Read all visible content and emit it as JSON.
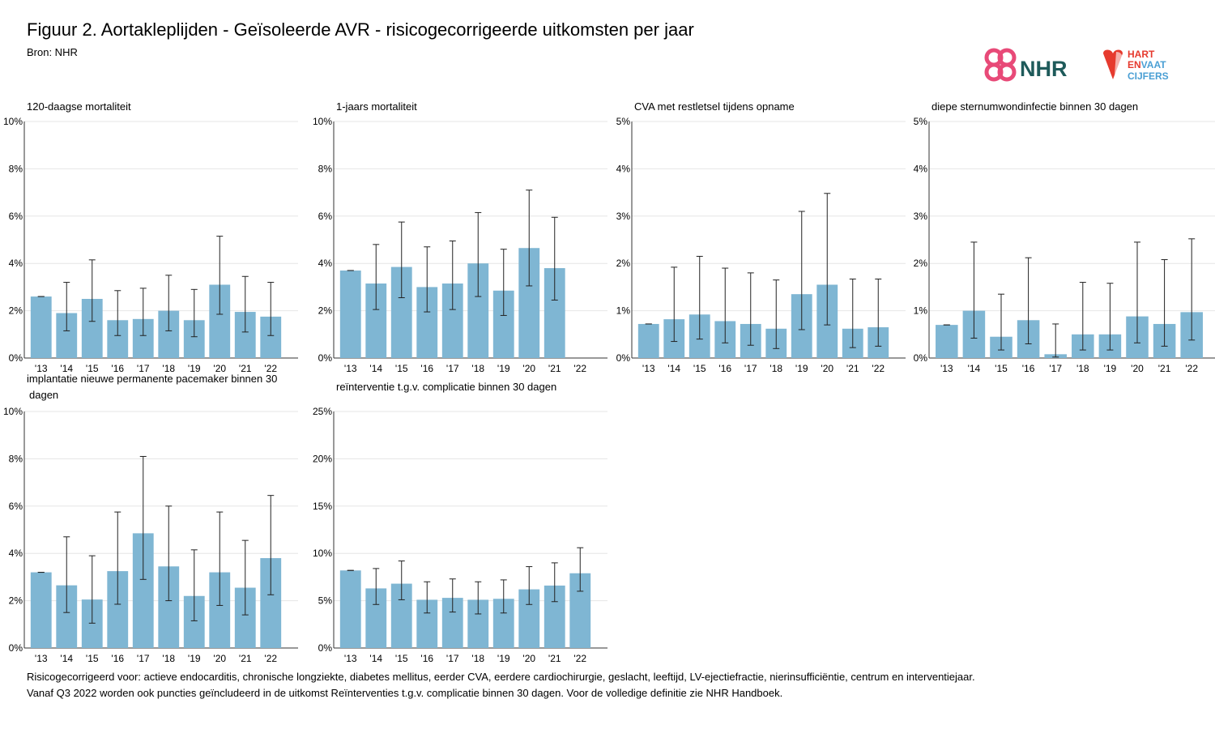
{
  "header": {
    "title": "Figuur 2. Aortakleplijden - Geïsoleerde AVR - risicogecorrigeerde uitkomsten per jaar",
    "source": "Bron: NHR"
  },
  "logos": {
    "nhr_text": "NHR",
    "hartvaat_line1": "HART",
    "hartvaat_line2_a": "EN",
    "hartvaat_line2_b": "VAAT",
    "hartvaat_line3": "CIJFERS"
  },
  "colors": {
    "bar": "#7fb6d3",
    "errorbar": "#222222",
    "grid": "#e6e6e6",
    "nhr_pink": "#e84a78",
    "nhr_teal": "#1e5a5a",
    "hv_red": "#e63a2e",
    "hv_blue": "#4a9fd4"
  },
  "footnotes": [
    "Risicogecorrigeerd voor: actieve endocarditis, chronische longziekte, diabetes mellitus, eerder CVA, eerdere cardiochirurgie, geslacht, leeftijd, LV-ejectiefractie, nierinsufficiëntie, centrum en interventiejaar.",
    "Vanaf Q3 2022 worden ook puncties geïncludeerd in de uitkomst Reïnterventies t.g.v. complicatie binnen 30 dagen. Voor de volledige definitie zie NHR Handboek."
  ],
  "chart_data": [
    {
      "type": "bar",
      "title": "120-daagse mortaliteit",
      "categories": [
        "'13",
        "'14",
        "'15",
        "'16",
        "'17",
        "'18",
        "'19",
        "'20",
        "'21",
        "'22"
      ],
      "values": [
        2.6,
        1.9,
        2.5,
        1.6,
        1.65,
        2.0,
        1.6,
        3.1,
        1.95,
        1.75
      ],
      "lower": [
        2.6,
        1.15,
        1.55,
        0.95,
        0.95,
        1.15,
        0.9,
        1.85,
        1.1,
        0.95
      ],
      "upper": [
        2.6,
        3.2,
        4.15,
        2.85,
        2.95,
        3.5,
        2.9,
        5.15,
        3.45,
        3.2
      ],
      "ylim": [
        0,
        10
      ],
      "yticks": [
        "0%",
        "2%",
        "4%",
        "6%",
        "8%",
        "10%"
      ],
      "ytick_values": [
        0,
        2,
        4,
        6,
        8,
        10
      ]
    },
    {
      "type": "bar",
      "title": "1-jaars mortaliteit",
      "categories": [
        "'13",
        "'14",
        "'15",
        "'16",
        "'17",
        "'18",
        "'19",
        "'20",
        "'21",
        "'22"
      ],
      "values": [
        3.7,
        3.15,
        3.85,
        3.0,
        3.15,
        4.0,
        2.85,
        4.65,
        3.8,
        null
      ],
      "lower": [
        3.7,
        2.05,
        2.55,
        1.95,
        2.05,
        2.6,
        1.8,
        3.05,
        2.45,
        null
      ],
      "upper": [
        3.7,
        4.8,
        5.75,
        4.7,
        4.95,
        6.15,
        4.6,
        7.1,
        5.95,
        null
      ],
      "ylim": [
        0,
        10
      ],
      "yticks": [
        "0%",
        "2%",
        "4%",
        "6%",
        "8%",
        "10%"
      ],
      "ytick_values": [
        0,
        2,
        4,
        6,
        8,
        10
      ]
    },
    {
      "type": "bar",
      "title": "CVA met restletsel tijdens opname",
      "categories": [
        "'13",
        "'14",
        "'15",
        "'16",
        "'17",
        "'18",
        "'19",
        "'20",
        "'21",
        "'22"
      ],
      "values": [
        0.72,
        0.82,
        0.92,
        0.78,
        0.72,
        0.62,
        1.35,
        1.55,
        0.62,
        0.65
      ],
      "lower": [
        0.72,
        0.35,
        0.4,
        0.32,
        0.27,
        0.2,
        0.6,
        0.7,
        0.22,
        0.25
      ],
      "upper": [
        0.72,
        1.92,
        2.15,
        1.9,
        1.8,
        1.65,
        3.1,
        3.48,
        1.67,
        1.67
      ],
      "ylim": [
        0,
        5
      ],
      "yticks": [
        "0%",
        "1%",
        "2%",
        "3%",
        "4%",
        "5%"
      ],
      "ytick_values": [
        0,
        1,
        2,
        3,
        4,
        5
      ]
    },
    {
      "type": "bar",
      "title": "diepe sternumwondinfectie binnen 30 dagen",
      "categories": [
        "'13",
        "'14",
        "'15",
        "'16",
        "'17",
        "'18",
        "'19",
        "'20",
        "'21",
        "'22"
      ],
      "values": [
        0.7,
        1.0,
        0.45,
        0.8,
        0.08,
        0.5,
        0.5,
        0.88,
        0.72,
        0.97
      ],
      "lower": [
        0.7,
        0.42,
        0.17,
        0.3,
        0.02,
        0.17,
        0.17,
        0.32,
        0.25,
        0.38
      ],
      "upper": [
        0.7,
        2.45,
        1.35,
        2.12,
        0.72,
        1.6,
        1.58,
        2.45,
        2.08,
        2.52
      ],
      "ylim": [
        0,
        5
      ],
      "yticks": [
        "0%",
        "1%",
        "2%",
        "3%",
        "4%",
        "5%"
      ],
      "ytick_values": [
        0,
        1,
        2,
        3,
        4,
        5
      ]
    },
    {
      "type": "bar",
      "title_line1": "implantatie nieuwe permanente pacemaker binnen 30",
      "title_line2": "dagen",
      "categories": [
        "'13",
        "'14",
        "'15",
        "'16",
        "'17",
        "'18",
        "'19",
        "'20",
        "'21",
        "'22"
      ],
      "values": [
        3.2,
        2.65,
        2.05,
        3.25,
        4.85,
        3.45,
        2.2,
        3.2,
        2.55,
        3.8
      ],
      "lower": [
        3.2,
        1.5,
        1.05,
        1.85,
        2.9,
        2.0,
        1.15,
        1.8,
        1.4,
        2.25
      ],
      "upper": [
        3.2,
        4.7,
        3.9,
        5.75,
        8.1,
        6.0,
        4.15,
        5.75,
        4.55,
        6.45
      ],
      "ylim": [
        0,
        10
      ],
      "yticks": [
        "0%",
        "2%",
        "4%",
        "6%",
        "8%",
        "10%"
      ],
      "ytick_values": [
        0,
        2,
        4,
        6,
        8,
        10
      ]
    },
    {
      "type": "bar",
      "title": "reïnterventie t.g.v. complicatie binnen 30 dagen",
      "categories": [
        "'13",
        "'14",
        "'15",
        "'16",
        "'17",
        "'18",
        "'19",
        "'20",
        "'21",
        "'22"
      ],
      "values": [
        8.2,
        6.3,
        6.8,
        5.1,
        5.3,
        5.1,
        5.2,
        6.2,
        6.6,
        7.9
      ],
      "lower": [
        8.2,
        4.6,
        5.1,
        3.7,
        3.8,
        3.6,
        3.7,
        4.6,
        4.9,
        6.0
      ],
      "upper": [
        8.2,
        8.4,
        9.2,
        7.0,
        7.3,
        7.0,
        7.2,
        8.6,
        9.0,
        10.6
      ],
      "ylim": [
        0,
        25
      ],
      "yticks": [
        "0%",
        "5%",
        "10%",
        "15%",
        "20%",
        "25%"
      ],
      "ytick_values": [
        0,
        5,
        10,
        15,
        20,
        25
      ]
    }
  ]
}
